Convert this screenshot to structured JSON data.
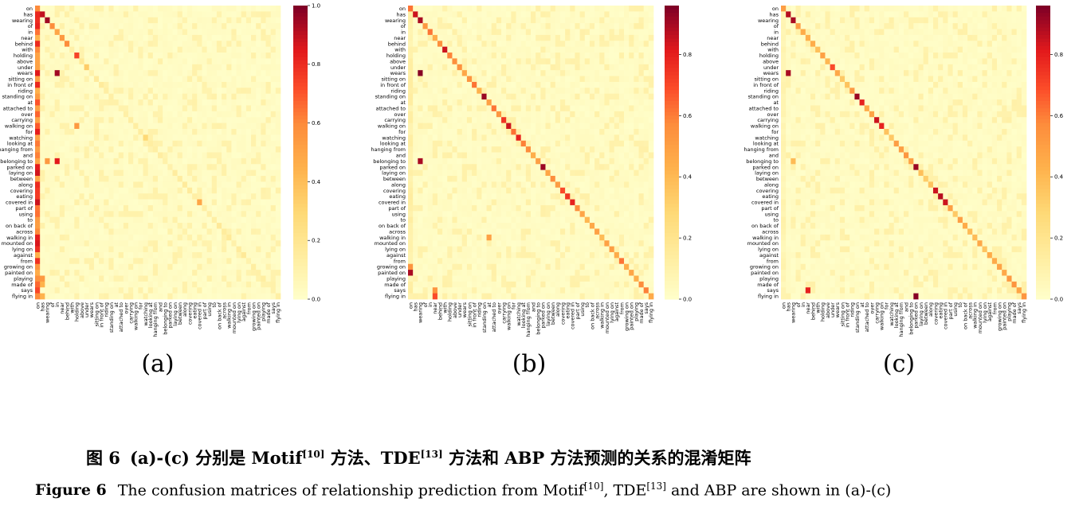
{
  "labels": [
    "on",
    "has",
    "wearing",
    "of",
    "in",
    "near",
    "behind",
    "with",
    "holding",
    "above",
    "under",
    "wears",
    "sitting on",
    "in front of",
    "riding",
    "standing on",
    "at",
    "attached to",
    "over",
    "carrying",
    "walking on",
    "for",
    "watching",
    "looking at",
    "hanging from",
    "and",
    "belonging to",
    "parked on",
    "laying on",
    "between",
    "along",
    "covering",
    "eating",
    "covered in",
    "part of",
    "using",
    "to",
    "on back of",
    "across",
    "walking in",
    "mounted on",
    "lying on",
    "against",
    "from",
    "growing on",
    "painted on",
    "playing",
    "made of",
    "says",
    "flying in"
  ],
  "panels": [
    {
      "label": "(a)",
      "colorbar_ticks": [
        "0.0",
        "0.2",
        "0.4",
        "0.6",
        "0.8",
        "1.0"
      ],
      "vmax": 1.0
    },
    {
      "label": "(b)",
      "colorbar_ticks": [
        "0.0",
        "0.2",
        "0.4",
        "0.6",
        "0.8"
      ],
      "vmax": 0.96
    },
    {
      "label": "(c)",
      "colorbar_ticks": [
        "0.0",
        "0.2",
        "0.4",
        "0.6",
        "0.8"
      ],
      "vmax": 0.96
    }
  ],
  "chart_data": [
    {
      "type": "heatmap",
      "title": "",
      "xlabel": "",
      "ylabel": "",
      "zlim": [
        0,
        1.0
      ],
      "x": "labels",
      "y": "labels",
      "diag_strength": 0.18,
      "first_col_strength": 0.9,
      "diag_hot": [
        [
          1,
          0.9
        ],
        [
          2,
          0.95
        ],
        [
          3,
          0.6
        ],
        [
          4,
          0.5
        ],
        [
          5,
          0.55
        ],
        [
          6,
          0.6
        ],
        [
          8,
          0.75
        ],
        [
          10,
          0.35
        ],
        [
          22,
          0.3
        ],
        [
          33,
          0.5
        ]
      ],
      "hot_cells": [
        [
          11,
          4,
          0.95
        ],
        [
          26,
          4,
          0.85
        ],
        [
          20,
          8,
          0.55
        ],
        [
          2,
          0,
          0.8
        ],
        [
          26,
          2,
          0.55
        ],
        [
          46,
          1,
          0.55
        ],
        [
          49,
          1,
          0.45
        ],
        [
          47,
          1,
          0.45
        ]
      ]
    },
    {
      "type": "heatmap",
      "title": "",
      "xlabel": "",
      "ylabel": "",
      "zlim": [
        0,
        0.96
      ],
      "x": "labels",
      "y": "labels",
      "diag_strength": 0.65,
      "first_col_strength": 0.15,
      "diag_hot": [
        [
          1,
          0.85
        ],
        [
          2,
          0.9
        ],
        [
          7,
          0.85
        ],
        [
          12,
          0.55
        ],
        [
          15,
          0.92
        ],
        [
          19,
          0.75
        ],
        [
          20,
          0.85
        ],
        [
          22,
          0.8
        ],
        [
          23,
          0.6
        ],
        [
          27,
          0.92
        ],
        [
          31,
          0.7
        ],
        [
          32,
          0.75
        ],
        [
          33,
          0.8
        ]
      ],
      "hot_cells": [
        [
          11,
          2,
          0.95
        ],
        [
          26,
          2,
          0.9
        ],
        [
          45,
          0,
          0.9
        ],
        [
          44,
          0,
          0.55
        ],
        [
          49,
          5,
          0.7
        ],
        [
          48,
          5,
          0.55
        ],
        [
          39,
          16,
          0.5
        ]
      ]
    },
    {
      "type": "heatmap",
      "title": "",
      "xlabel": "",
      "ylabel": "",
      "zlim": [
        0,
        0.96
      ],
      "x": "labels",
      "y": "labels",
      "diag_strength": 0.55,
      "first_col_strength": 0.1,
      "diag_hot": [
        [
          1,
          0.88
        ],
        [
          2,
          0.9
        ],
        [
          10,
          0.7
        ],
        [
          15,
          0.92
        ],
        [
          16,
          0.8
        ],
        [
          19,
          0.85
        ],
        [
          20,
          0.8
        ],
        [
          27,
          0.92
        ],
        [
          31,
          0.85
        ],
        [
          32,
          0.88
        ],
        [
          33,
          0.85
        ]
      ],
      "hot_cells": [
        [
          11,
          1,
          0.9
        ],
        [
          49,
          27,
          0.95
        ],
        [
          48,
          5,
          0.8
        ],
        [
          26,
          2,
          0.4
        ]
      ]
    }
  ],
  "caption": {
    "cn_lead": "图 6",
    "cn_a": "(a)-(c) 分别是 Motif",
    "cn_ref1": "[10]",
    "cn_b": " 方法、TDE",
    "cn_ref2": "[13]",
    "cn_c": " 方法和 ABP 方法预测的关系的混淆矩阵",
    "en_lead": "Figure 6",
    "en_a": "The confusion matrices of relationship prediction from Motif",
    "en_ref1": "[10]",
    "en_b": ", TDE",
    "en_ref2": "[13]",
    "en_c": " and ABP are shown in (a)-(c)"
  }
}
